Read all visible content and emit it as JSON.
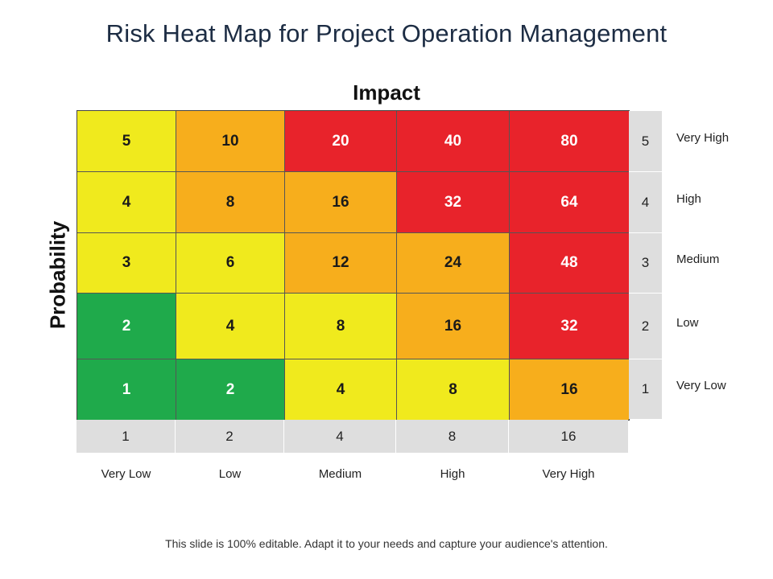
{
  "title": "Risk Heat Map for Project Operation Management",
  "footer": "This slide is 100% editable. Adapt it to your needs and capture your audience's attention.",
  "colors": {
    "green": "#1faa4b",
    "yellow": "#f0ea1d",
    "orange": "#f7ae1c",
    "red": "#e8232b",
    "scale_gray": "#dedede"
  },
  "chart_data": {
    "type": "heatmap",
    "title": "Risk Heat Map for Project Operation Management",
    "xlabel": "Impact",
    "ylabel": "Probability",
    "x_categories": [
      "Very Low",
      "Low",
      "Medium",
      "High",
      "Very High"
    ],
    "x_values": [
      "1",
      "2",
      "4",
      "8",
      "16"
    ],
    "y_categories": [
      "Very High",
      "High",
      "Medium",
      "Low",
      "Very Low"
    ],
    "y_values": [
      "5",
      "4",
      "3",
      "2",
      "1"
    ],
    "grid": [
      [
        "5",
        "10",
        "20",
        "40",
        "80"
      ],
      [
        "4",
        "8",
        "16",
        "32",
        "64"
      ],
      [
        "3",
        "6",
        "12",
        "24",
        "48"
      ],
      [
        "2",
        "4",
        "8",
        "16",
        "32"
      ],
      [
        "1",
        "2",
        "4",
        "8",
        "16"
      ]
    ],
    "cell_colors": [
      [
        "yellow",
        "orange",
        "red",
        "red",
        "red"
      ],
      [
        "yellow",
        "orange",
        "orange",
        "red",
        "red"
      ],
      [
        "yellow",
        "yellow",
        "orange",
        "orange",
        "red"
      ],
      [
        "green",
        "yellow",
        "yellow",
        "orange",
        "red"
      ],
      [
        "green",
        "green",
        "yellow",
        "yellow",
        "orange"
      ]
    ]
  }
}
